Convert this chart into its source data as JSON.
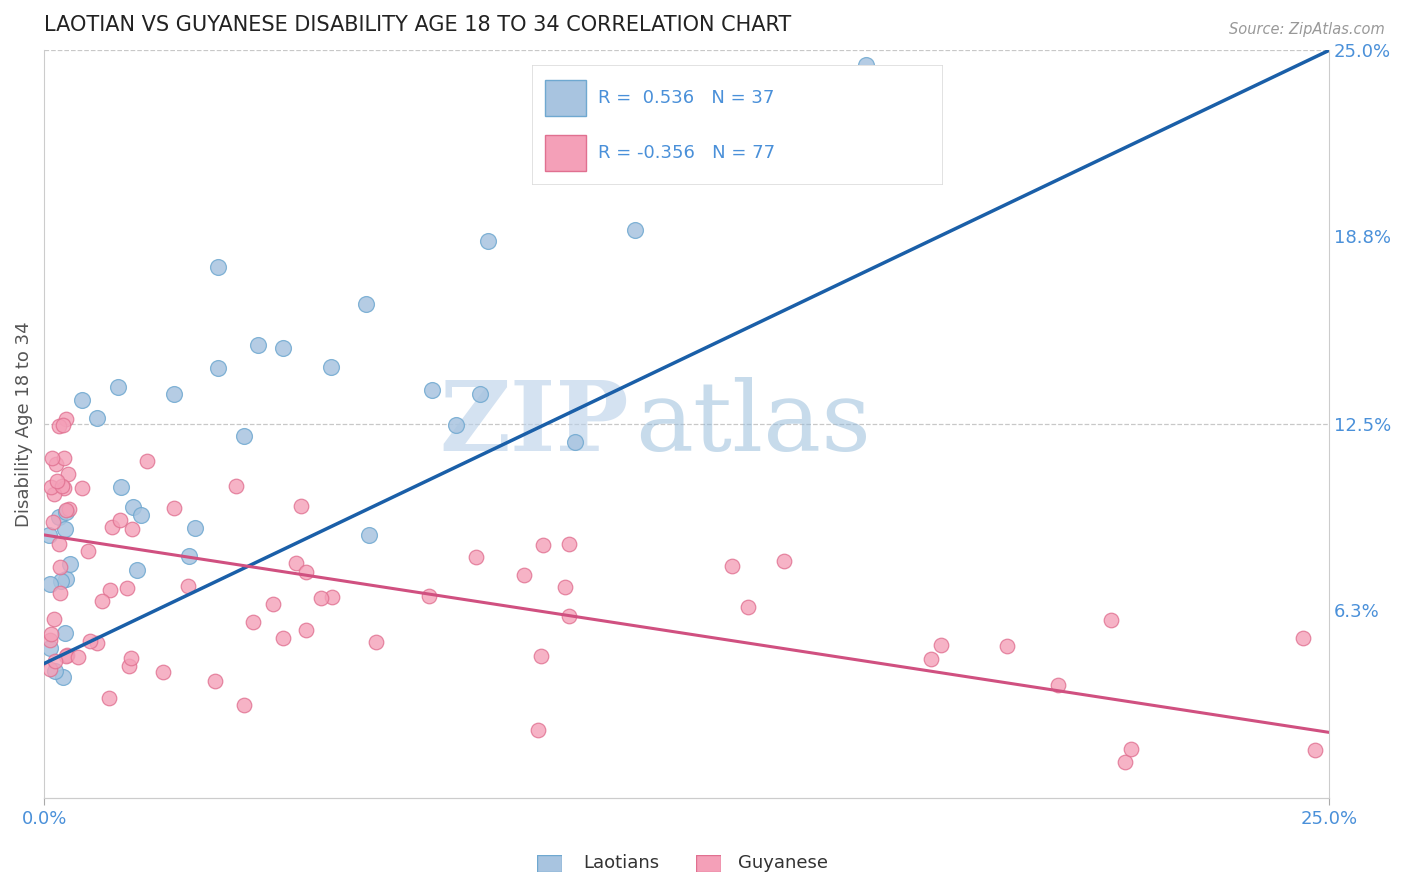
{
  "title": "LAOTIAN VS GUYANESE DISABILITY AGE 18 TO 34 CORRELATION CHART",
  "source_text": "Source: ZipAtlas.com",
  "ylabel": "Disability Age 18 to 34",
  "xlim": [
    0.0,
    0.25
  ],
  "ylim": [
    0.0,
    0.25
  ],
  "xtick_labels": [
    "0.0%",
    "25.0%"
  ],
  "ytick_labels_right": [
    "6.3%",
    "12.5%",
    "18.8%",
    "25.0%"
  ],
  "ytick_vals_right": [
    0.063,
    0.125,
    0.188,
    0.25
  ],
  "laotian_color": "#a8c4e0",
  "laotian_edge": "#6fa8d0",
  "guyanese_color": "#f4a0b8",
  "guyanese_edge": "#e07090",
  "trend_laotian_color": "#1a5fa8",
  "trend_guyanese_color": "#d05080",
  "trend_lao_x0": 0.0,
  "trend_lao_y0": 0.045,
  "trend_lao_x1": 0.25,
  "trend_lao_y1": 0.25,
  "trend_guy_x0": 0.0,
  "trend_guy_y0": 0.088,
  "trend_guy_x1": 0.25,
  "trend_guy_y1": 0.022,
  "R_laotian": 0.536,
  "N_laotian": 37,
  "R_guyanese": -0.356,
  "N_guyanese": 77,
  "legend_label_laotian": "Laotians",
  "legend_label_guyanese": "Guyanese",
  "watermark_zip": "ZIP",
  "watermark_atlas": "atlas",
  "watermark_zip_color": "#b8cfe8",
  "watermark_atlas_color": "#90b8d8",
  "dashed_line_y1": 0.125,
  "dashed_line_y2": 0.25,
  "background_color": "#ffffff",
  "title_color": "#222222",
  "axis_label_color": "#555555",
  "tick_label_color_blue": "#4a90d9",
  "legend_box_color": "#dddddd",
  "seed": 99
}
